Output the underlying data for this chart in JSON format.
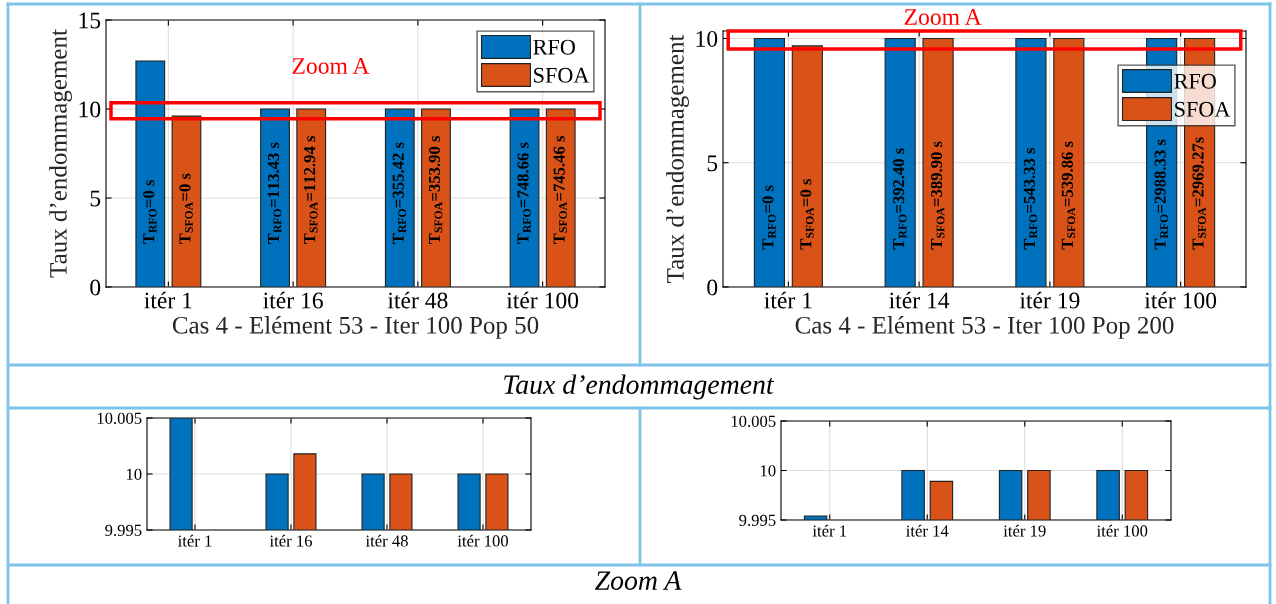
{
  "chart_data": [
    {
      "type": "bar",
      "xlabel": "Cas 4 - Elément 53 - Iter 100 Pop 50",
      "ylabel": "Taux d’endommagement",
      "categories": [
        "itér 1",
        "itér 16",
        "itér 48",
        "itér 100"
      ],
      "series": [
        {
          "name": "RFO",
          "color": "#0072bd",
          "values": [
            12.7,
            10,
            10,
            10
          ]
        },
        {
          "name": "SFOA",
          "color": "#d95319",
          "values": [
            9.6,
            10,
            10,
            10
          ]
        }
      ],
      "ylim": [
        0,
        15
      ],
      "yticks": [
        0,
        5,
        10,
        15
      ],
      "grid": true,
      "legend": "top right",
      "annotations": [
        {
          "text": "T$_{RFO}$=0 s",
          "x": "itér 1",
          "y": 2.4
        },
        {
          "text": "T$_{SFOA}$=0 s",
          "x": "itér 1",
          "y": 2.4
        },
        {
          "text": "T$_{RFO}$=113.43 s",
          "x": "itér 16",
          "y": 2.4
        },
        {
          "text": "T$_{SFOA}$=112.94 s",
          "x": "itér 16",
          "y": 2.4
        },
        {
          "text": "T$_{RFO}$=355.42 s",
          "x": "itér 48",
          "y": 2.4
        },
        {
          "text": "T$_{SFOA}$=353.90 s",
          "x": "itér 48",
          "y": 2.4
        },
        {
          "text": "T$_{RFO}$=748.66 s",
          "x": "itér 100",
          "y": 2.4
        },
        {
          "text": "T$_{SFOA}$=745.46 s",
          "x": "itér 100",
          "y": 2.4
        },
        "Zoom A",
        "Taux d’endommagement"
      ]
    },
    {
      "type": "bar",
      "xlabel": "Cas 4 - Elément 53 - Iter 100 Pop 200",
      "ylabel": "Taux d’endommagement",
      "categories": [
        "itér 1",
        "itér 14",
        "itér 19",
        "itér 100"
      ],
      "series": [
        {
          "name": "RFO",
          "color": "#0072bd",
          "values": [
            10,
            10,
            10,
            10
          ]
        },
        {
          "name": "SFOA",
          "color": "#d95319",
          "values": [
            9.7,
            10,
            10,
            10
          ]
        }
      ],
      "ylim": [
        0,
        10.3
      ],
      "yticks": [
        0,
        5,
        10
      ],
      "grid": true,
      "legend": "right",
      "annotations": [
        {
          "text": "T$_{RFO}$=0 s",
          "x": "itér 1",
          "y": 1.5
        },
        {
          "text": "T$_{SFOA}$=0 s",
          "x": "itér 1",
          "y": 1.5
        },
        {
          "text": "T$_{RFO}$=392.40 s",
          "x": "itér 14",
          "y": 1.5
        },
        {
          "text": "T$_{SFOA}$=389.90 s",
          "x": "itér 14",
          "y": 1.5
        },
        {
          "text": "T$_{RFO}$=543.33 s",
          "x": "itér 19",
          "y": 1.5
        },
        {
          "text": "T$_{SFOA}$=539.86 s",
          "x": "itér 19",
          "y": 1.5
        },
        {
          "text": "T$_{RFO}$=2988.33 s",
          "x": "itér 100",
          "y": 1.5
        },
        {
          "text": "T$_{SFOA}$=2969.27s",
          "x": "itér 100",
          "y": 1.5
        },
        "Zoom A"
      ]
    },
    {
      "type": "bar",
      "categories": [
        "itér 1",
        "itér 16",
        "itér 48",
        "itér 100"
      ],
      "series": [
        {
          "color": "#0072bd",
          "values": [
            10.005,
            10,
            10,
            10
          ]
        },
        {
          "color": "#d95319",
          "values": [
            null,
            10.0018,
            10,
            10
          ]
        }
      ],
      "ylim": [
        9.995,
        10.005
      ],
      "yticks": [
        9.995,
        10,
        10.005
      ],
      "grid": true,
      "annotations": [
        "Zoom A"
      ]
    },
    {
      "type": "bar",
      "categories": [
        "itér 1",
        "itér 14",
        "itér 19",
        "itér 100"
      ],
      "series": [
        {
          "color": "#0072bd",
          "values": [
            9.9954,
            10,
            10,
            10
          ]
        },
        {
          "color": "#d95319",
          "values": [
            null,
            9.9989,
            10,
            10
          ]
        }
      ],
      "ylim": [
        9.995,
        10.005
      ],
      "yticks": [
        9.995,
        10,
        10.005
      ],
      "grid": true
    }
  ]
}
